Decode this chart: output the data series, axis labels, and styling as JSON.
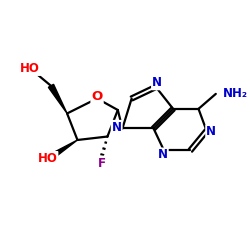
{
  "background": "#ffffff",
  "bond_color": "#000000",
  "bond_lw": 1.6,
  "atom_colors": {
    "O": "#ff0000",
    "N": "#0000cc",
    "F": "#8b008b",
    "HO": "#ff0000",
    "NH2": "#0000cc"
  },
  "font_size": 8.5
}
